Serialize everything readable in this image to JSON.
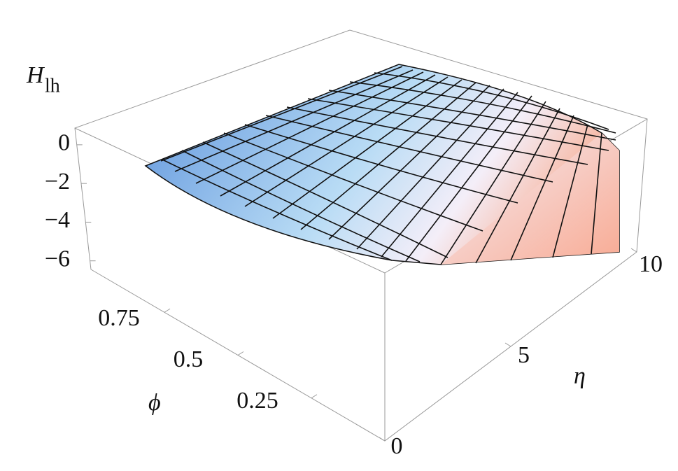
{
  "chart_data": {
    "type": "surface",
    "title": "H",
    "title_subscript": "lh",
    "xlabel": "ϕ",
    "ylabel": "η",
    "xlim": [
      0,
      1
    ],
    "xticks": [
      0.25,
      0.5,
      0.75
    ],
    "ylim": [
      0,
      10
    ],
    "yticks": [
      0,
      5,
      10
    ],
    "zlim": [
      -6.3,
      0.9
    ],
    "zticks": [
      0,
      {
        "value": -2,
        "label": "−2"
      },
      {
        "value": -4,
        "label": "−4"
      },
      {
        "value": -6,
        "label": "−6"
      }
    ]
  }
}
